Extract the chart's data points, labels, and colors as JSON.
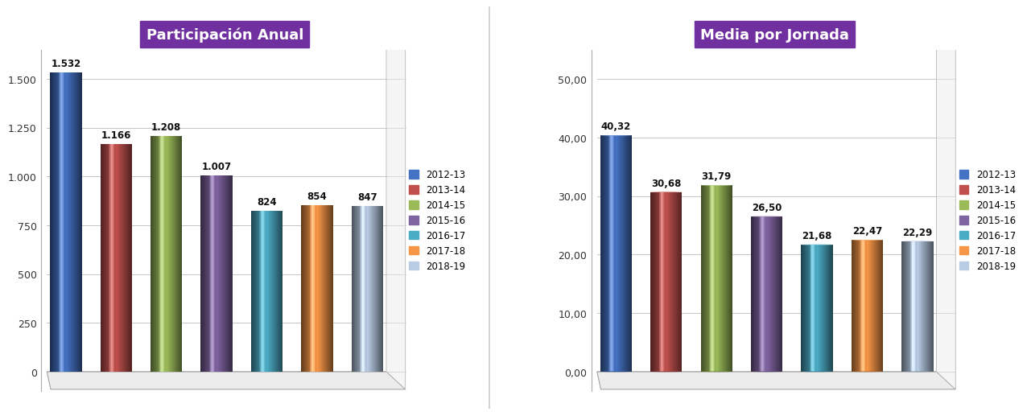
{
  "chart1": {
    "title": "Participación Anual",
    "categories": [
      "2012-13",
      "2013-14",
      "2014-15",
      "2015-16",
      "2016-17",
      "2017-18",
      "2018-19"
    ],
    "values": [
      1532,
      1166,
      1208,
      1007,
      824,
      854,
      847
    ],
    "labels": [
      "1.532",
      "1.166",
      "1.208",
      "1.007",
      "824",
      "854",
      "847"
    ],
    "yticks": [
      0,
      250,
      500,
      750,
      1000,
      1250,
      1500
    ],
    "ytick_labels": [
      "0",
      "250",
      "500",
      "750",
      "1.000",
      "1.250",
      "1.500"
    ],
    "ylim": [
      0,
      1650
    ]
  },
  "chart2": {
    "title": "Media por Jornada",
    "categories": [
      "2012-13",
      "2013-14",
      "2014-15",
      "2015-16",
      "2016-17",
      "2017-18",
      "2018-19"
    ],
    "values": [
      40.32,
      30.68,
      31.79,
      26.5,
      21.68,
      22.47,
      22.29
    ],
    "labels": [
      "40,32",
      "30,68",
      "31,79",
      "26,50",
      "21,68",
      "22,47",
      "22,29"
    ],
    "yticks": [
      0,
      10,
      20,
      30,
      40,
      50
    ],
    "ytick_labels": [
      "0,00",
      "10,00",
      "20,00",
      "30,00",
      "40,00",
      "50,00"
    ],
    "ylim": [
      0,
      55
    ]
  },
  "colors": [
    "#4472C4",
    "#C0504D",
    "#9BBB59",
    "#8064A2",
    "#4BACC6",
    "#F79646",
    "#B8CCE4"
  ],
  "title_bg_color": "#7030A0",
  "title_text_color": "#FFFFFF",
  "bg_color": "#FFFFFF",
  "grid_color": "#BBBBBB",
  "label_fontsize": 8.5,
  "title_fontsize": 13,
  "legend_fontsize": 8.5
}
